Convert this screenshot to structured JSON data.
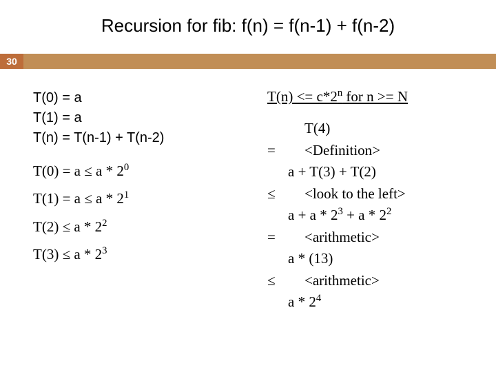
{
  "slide": {
    "title": "Recursion for fib:  f(n) = f(n-1) + f(n-2)",
    "page_number": "30",
    "colors": {
      "bar_bg": "#c18e56",
      "pagenum_bg": "#bd6d3a",
      "pagenum_fg": "#ffffff",
      "text": "#000000",
      "background": "#ffffff"
    },
    "fonts": {
      "title_size_pt": 26,
      "body_sans_size_pt": 20,
      "body_serif_size_pt": 21,
      "title_family": "Arial",
      "serif_family": "Times New Roman"
    }
  },
  "left": {
    "rec0": "T(0) = a",
    "rec1": "T(1) = a",
    "recn": "T(n) = T(n-1) + T(n-2)",
    "t0_a": "T(0) = a  ≤ a * 2",
    "t0_b": "0",
    "t1_a": "T(1) = a  ≤ a * 2",
    "t1_b": "1",
    "t2_a": "T(2)  ≤ a * 2",
    "t2_b": "2",
    "t3_a": "T(3)  ≤ a * 2",
    "t3_b": "3"
  },
  "right": {
    "claim_a": "T(n) <= c*2",
    "claim_exp": "n",
    "claim_b": "  for n >= N",
    "r1_body": "T(4)",
    "r2_op": "=",
    "r2_body": "<Definition>",
    "r3_body": "a + T(3) + T(2)",
    "r4_op": "≤",
    "r4_body": "<look to the left>",
    "r5_a": "a  +  a * 2",
    "r5_exp1": "3",
    "r5_mid": "  +  a * 2",
    "r5_exp2": "2",
    "r6_op": "=",
    "r6_body": "<arithmetic>",
    "r7_body": "a * (13)",
    "r8_op": "≤",
    "r8_body": "<arithmetic>",
    "r9_a": "a * 2",
    "r9_exp": "4"
  }
}
